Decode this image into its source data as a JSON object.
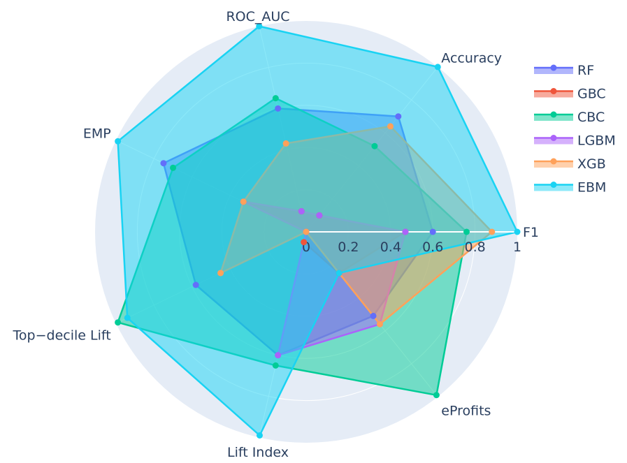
{
  "chart_data": {
    "type": "radar",
    "axes": [
      "F1",
      "Accuracy",
      "ROC_AUC",
      "EMP",
      "Top−decile Lift",
      "Lift Index",
      "eProfits"
    ],
    "radial_range": [
      0,
      1
    ],
    "radial_ticks": [
      "0",
      "0.2",
      "0.4",
      "0.6",
      "0.8",
      "1"
    ],
    "grid": true,
    "legend_position": "top-right",
    "series": [
      {
        "name": "RF",
        "color": "#636efa",
        "values": [
          0.6,
          0.7,
          0.6,
          0.75,
          0.58,
          0.6,
          0.51
        ]
      },
      {
        "name": "GBC",
        "color": "#ef553b",
        "values": [
          0.47,
          0.1,
          0.1,
          0.33,
          0.0,
          0.05,
          0.25
        ]
      },
      {
        "name": "CBC",
        "color": "#00cc96",
        "values": [
          0.76,
          0.52,
          0.65,
          0.7,
          0.99,
          0.65,
          0.99
        ]
      },
      {
        "name": "LGBM",
        "color": "#ab63fa",
        "values": [
          0.47,
          0.1,
          0.1,
          0.33,
          0.0,
          0.6,
          0.56
        ]
      },
      {
        "name": "XGB",
        "color": "#ffa15a",
        "values": [
          0.88,
          0.64,
          0.43,
          0.33,
          0.45,
          0.0,
          0.56
        ]
      },
      {
        "name": "EBM",
        "color": "#19d3f3",
        "values": [
          1.0,
          1.0,
          1.0,
          0.99,
          0.94,
          0.99,
          0.25
        ]
      }
    ]
  }
}
